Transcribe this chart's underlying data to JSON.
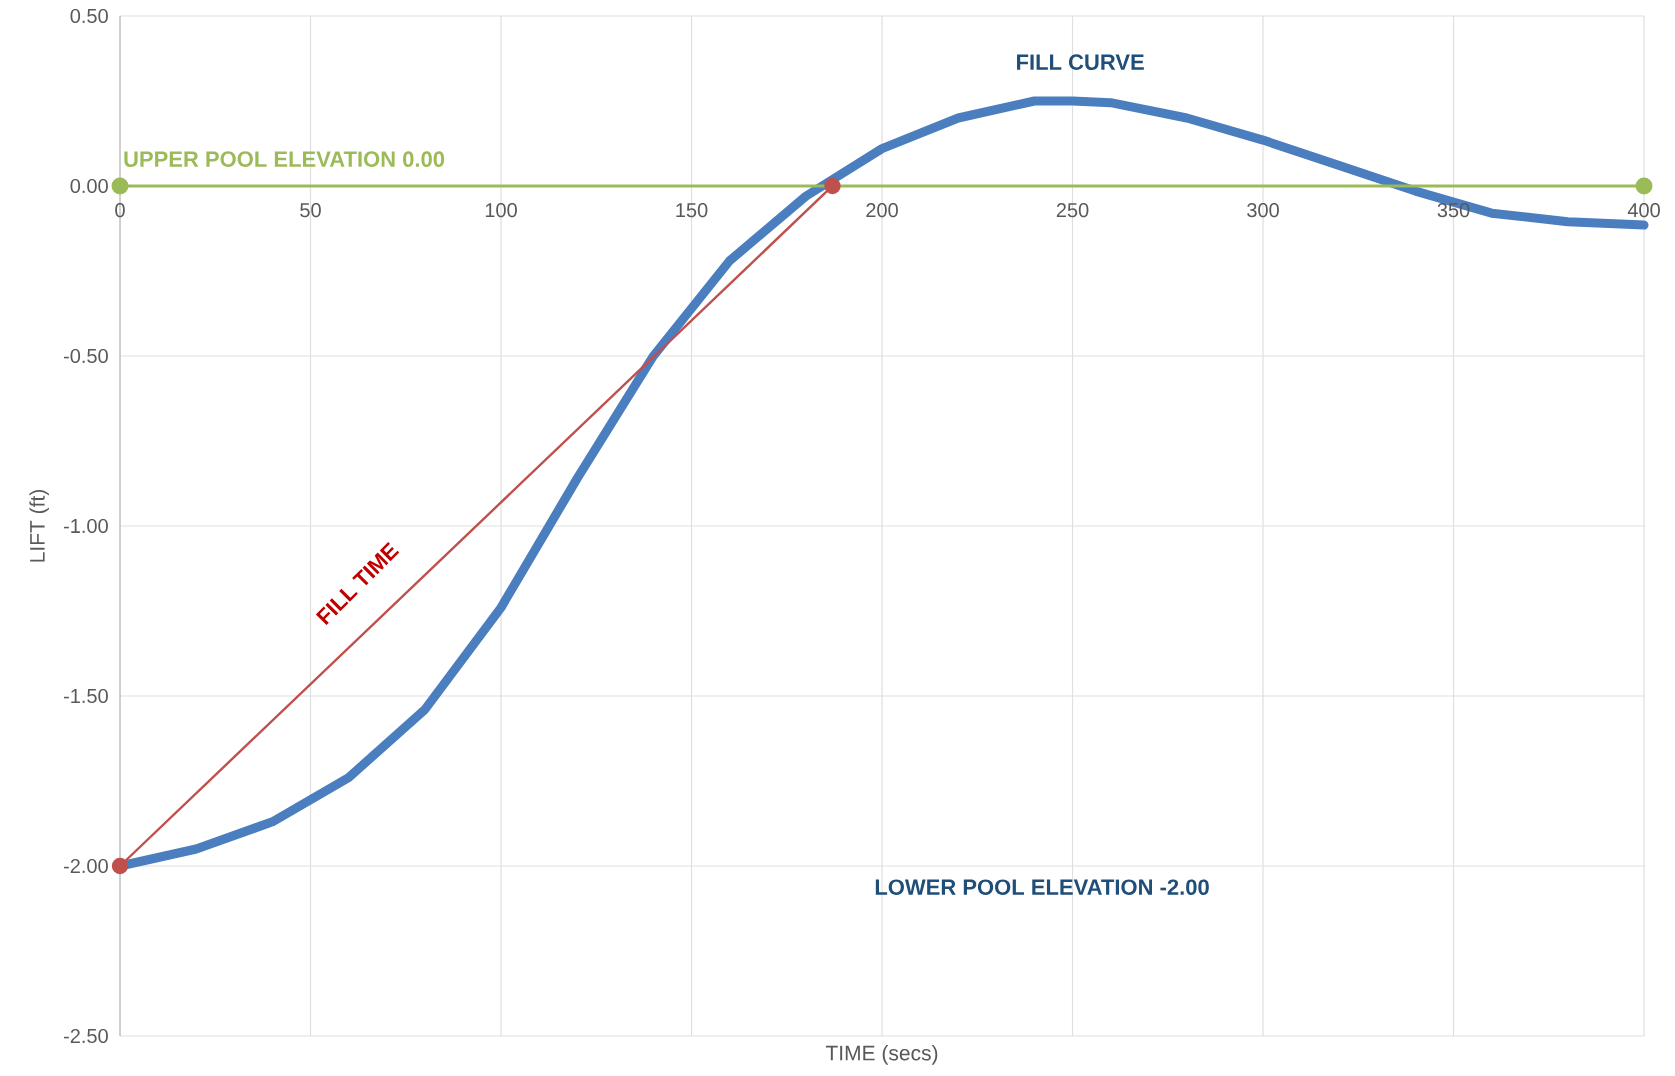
{
  "chart_data": {
    "type": "line",
    "xlabel": "TIME (secs)",
    "ylabel": "LIFT  (ft)",
    "xlim": [
      0,
      400
    ],
    "ylim": [
      -2.5,
      0.5
    ],
    "xticks": [
      0,
      50,
      100,
      150,
      200,
      250,
      300,
      350,
      400
    ],
    "yticks": [
      {
        "value": -2.5,
        "label": "-2.50"
      },
      {
        "value": -2.0,
        "label": "-2.00"
      },
      {
        "value": -1.5,
        "label": "-1.50"
      },
      {
        "value": -1.0,
        "label": "-1.00"
      },
      {
        "value": -0.5,
        "label": "-0.50"
      },
      {
        "value": 0,
        "label": "0.00"
      },
      {
        "value": 0.5,
        "label": "0.50"
      }
    ],
    "grid": true,
    "series": [
      {
        "color": "#4a7ebf",
        "marker": "none",
        "x": [
          0,
          20,
          40,
          60,
          80,
          100,
          120,
          140,
          160,
          180,
          200,
          220,
          240,
          250,
          260,
          280,
          300,
          320,
          340,
          360,
          380,
          400
        ],
        "values": [
          -2.0,
          -1.95,
          -1.87,
          -1.74,
          -1.54,
          -1.24,
          -0.86,
          -0.5,
          -0.22,
          -0.03,
          0.11,
          0.2,
          0.25,
          0.25,
          0.245,
          0.2,
          0.135,
          0.06,
          -0.015,
          -0.08,
          -0.105,
          -0.115
        ]
      },
      {
        "color": "#c0504d",
        "marker": "circle",
        "x": [
          0,
          187
        ],
        "values": [
          -2.0,
          0.0
        ]
      },
      {
        "color": "#9bbb59",
        "marker": "circle",
        "x": [
          0,
          400
        ],
        "values": [
          0.0,
          0.0
        ]
      }
    ],
    "annotations": [
      {
        "text": "UPPER POOL ELEVATION 0.00",
        "x": 0,
        "y": 0
      },
      {
        "text": "FILL CURVE",
        "x": 252,
        "y": 0.25
      },
      "FILL TIME",
      "LOWER POOL ELEVATION -2.00"
    ]
  }
}
